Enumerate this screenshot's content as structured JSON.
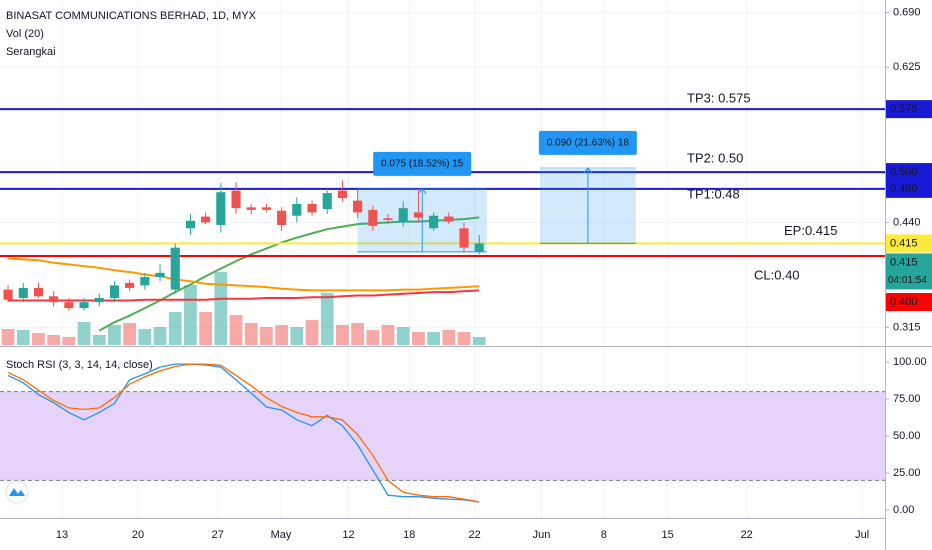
{
  "header": {
    "title": "BINASAT COMMUNICATIONS BERHAD, 1D, MYX",
    "volume_label": "Vol (20)",
    "indicator_label": "Serangkai"
  },
  "chart_data": [
    {
      "type": "candlestick",
      "x": [
        0,
        1,
        2,
        3,
        4,
        5,
        6,
        7,
        8,
        9,
        10,
        11,
        12,
        13,
        14,
        15,
        16,
        17,
        18,
        19,
        20,
        21,
        22,
        23,
        24,
        25,
        26,
        27,
        28,
        29,
        30,
        31
      ],
      "open": [
        0.36,
        0.35,
        0.362,
        0.352,
        0.345,
        0.338,
        0.345,
        0.35,
        0.368,
        0.365,
        0.375,
        0.36,
        0.433,
        0.447,
        0.437,
        0.478,
        0.458,
        0.458,
        0.454,
        0.448,
        0.462,
        0.456,
        0.478,
        0.466,
        0.455,
        0.445,
        0.44,
        0.452,
        0.433,
        0.447,
        0.433,
        0.405
      ],
      "high": [
        0.365,
        0.368,
        0.368,
        0.358,
        0.35,
        0.35,
        0.355,
        0.37,
        0.372,
        0.38,
        0.39,
        0.415,
        0.45,
        0.452,
        0.487,
        0.488,
        0.462,
        0.462,
        0.458,
        0.47,
        0.466,
        0.48,
        0.49,
        0.48,
        0.46,
        0.45,
        0.465,
        0.48,
        0.452,
        0.452,
        0.44,
        0.425
      ],
      "low": [
        0.345,
        0.345,
        0.35,
        0.34,
        0.335,
        0.335,
        0.34,
        0.345,
        0.358,
        0.36,
        0.37,
        0.355,
        0.425,
        0.438,
        0.428,
        0.45,
        0.45,
        0.452,
        0.43,
        0.44,
        0.448,
        0.45,
        0.465,
        0.445,
        0.43,
        0.438,
        0.435,
        0.44,
        0.43,
        0.438,
        0.405,
        0.402
      ],
      "close": [
        0.348,
        0.362,
        0.352,
        0.345,
        0.338,
        0.345,
        0.35,
        0.365,
        0.362,
        0.375,
        0.38,
        0.41,
        0.442,
        0.44,
        0.476,
        0.457,
        0.455,
        0.455,
        0.437,
        0.462,
        0.452,
        0.475,
        0.469,
        0.452,
        0.436,
        0.443,
        0.457,
        0.446,
        0.448,
        0.441,
        0.41,
        0.415
      ],
      "volume": [
        16,
        15,
        12,
        10,
        8,
        23,
        10,
        20,
        22,
        16,
        18,
        33,
        60,
        33,
        73,
        30,
        22,
        18,
        20,
        18,
        25,
        52,
        20,
        22,
        15,
        20,
        18,
        13,
        13,
        15,
        13,
        8
      ],
      "volume_ylim": [
        0,
        345
      ],
      "up_color": "#26a69a",
      "down_color": "#ef5350",
      "series": [
        {
          "color": "#4caf50",
          "values": [
            null,
            null,
            null,
            null,
            null,
            null,
            0.311,
            0.321,
            0.329,
            0.338,
            0.347,
            0.357,
            0.366,
            0.376,
            0.385,
            0.394,
            0.402,
            0.409,
            0.416,
            0.422,
            0.427,
            0.432,
            0.435,
            0.438,
            0.439,
            0.44,
            0.441,
            0.441,
            0.442,
            0.443,
            0.444,
            0.446
          ]
        },
        {
          "color": "#ff9800",
          "values": [
            0.397,
            0.396,
            0.395,
            0.392,
            0.39,
            0.388,
            0.386,
            0.383,
            0.381,
            0.378,
            0.376,
            0.372,
            0.37,
            0.367,
            0.366,
            0.365,
            0.364,
            0.363,
            0.361,
            0.36,
            0.359,
            0.359,
            0.359,
            0.359,
            0.359,
            0.359,
            0.36,
            0.36,
            0.361,
            0.362,
            0.363,
            0.364
          ]
        },
        {
          "color": "#f23645",
          "values": [
            0.347,
            0.347,
            0.347,
            0.347,
            0.347,
            0.347,
            0.347,
            0.347,
            0.347,
            0.348,
            0.348,
            0.348,
            0.348,
            0.348,
            0.349,
            0.349,
            0.349,
            0.35,
            0.35,
            0.35,
            0.351,
            0.351,
            0.352,
            0.353,
            0.353,
            0.354,
            0.355,
            0.356,
            0.357,
            0.357,
            0.358,
            0.359
          ]
        }
      ],
      "ylim": [
        0.294,
        0.705
      ],
      "yticks": [
        {
          "value": 0.69,
          "label": "0.690"
        },
        0.625,
        {
          "value": 0.44,
          "label": "0.440"
        },
        0.315
      ],
      "xlim": [
        -0.53,
        57.7
      ],
      "xticks": [
        {
          "value": 3.55,
          "label": "13"
        },
        {
          "value": 8.55,
          "label": "20"
        },
        {
          "value": 13.8,
          "label": "27"
        },
        {
          "value": 17.96,
          "label": "May"
        },
        {
          "value": 22.4,
          "label": "12"
        },
        {
          "value": 26.4,
          "label": "18"
        },
        {
          "value": 30.7,
          "label": "22"
        },
        {
          "value": 35.1,
          "label": "Jun"
        },
        {
          "value": 39.2,
          "label": "8"
        },
        {
          "value": 43.4,
          "label": "15"
        },
        {
          "value": 48.6,
          "label": "22"
        },
        {
          "value": 56.2,
          "label": "Jul"
        }
      ],
      "grid": true,
      "levels": [
        {
          "name": "TP3: 0.575",
          "value": 0.575,
          "label": "0.575",
          "color": "#1a1ad6"
        },
        {
          "name": "TP2: 0.50",
          "value": 0.5,
          "label": "0.500",
          "color": "#1a1ad6"
        },
        {
          "name": "TP1:0.48",
          "value": 0.48,
          "label": "0.480",
          "color": "#1a1ad6"
        },
        {
          "name": "EP:0.415",
          "value": 0.415,
          "label": "0.415",
          "color": "#ffeb3b"
        },
        {
          "name": "CL:0.40",
          "value": 0.4,
          "label": "0.400",
          "color": "#ff0000"
        }
      ],
      "measures": [
        {
          "label": "0.075 (18.52%) 15",
          "from": 0.405,
          "to": 0.48,
          "x": [
            23,
            31.5
          ]
        },
        {
          "label": "0.090 (21.63%) 18",
          "from": 0.415,
          "to": 0.505,
          "x": [
            35,
            41.3
          ]
        }
      ],
      "last_label": "0.415",
      "countdown": "04:01:54"
    },
    {
      "type": "line",
      "title": "Stoch RSI (3, 3, 14, 14, close)",
      "series": [
        {
          "color": "#2196f3",
          "values": [
            91,
            86,
            78,
            72.5,
            66,
            61,
            66,
            72,
            88,
            92,
            96.6,
            98.6,
            98.6,
            98,
            96.6,
            88,
            79,
            69.6,
            67.6,
            61,
            57,
            64,
            57,
            44,
            27,
            10,
            9,
            9,
            8,
            7.4,
            6.8,
            5.4
          ]
        },
        {
          "color": "#ff6d00",
          "values": [
            93,
            88,
            81,
            74,
            69,
            68,
            69,
            76,
            85,
            90,
            94,
            97,
            98.6,
            98.6,
            97.8,
            91,
            84,
            76,
            70,
            66,
            63,
            63,
            61,
            51,
            37,
            20,
            12,
            10,
            9,
            9,
            7.4,
            5.4
          ]
        }
      ],
      "band": [
        20,
        80
      ],
      "band_color": "#e6d3fa",
      "ylim": [
        -5.4,
        109.5
      ],
      "yticks": [
        {
          "value": 100,
          "label": "100.00"
        },
        {
          "value": 75,
          "label": "75.00"
        },
        {
          "value": 50,
          "label": "50.00"
        },
        {
          "value": 25,
          "label": "25.00"
        },
        {
          "value": 0,
          "label": "0.00"
        }
      ]
    }
  ]
}
